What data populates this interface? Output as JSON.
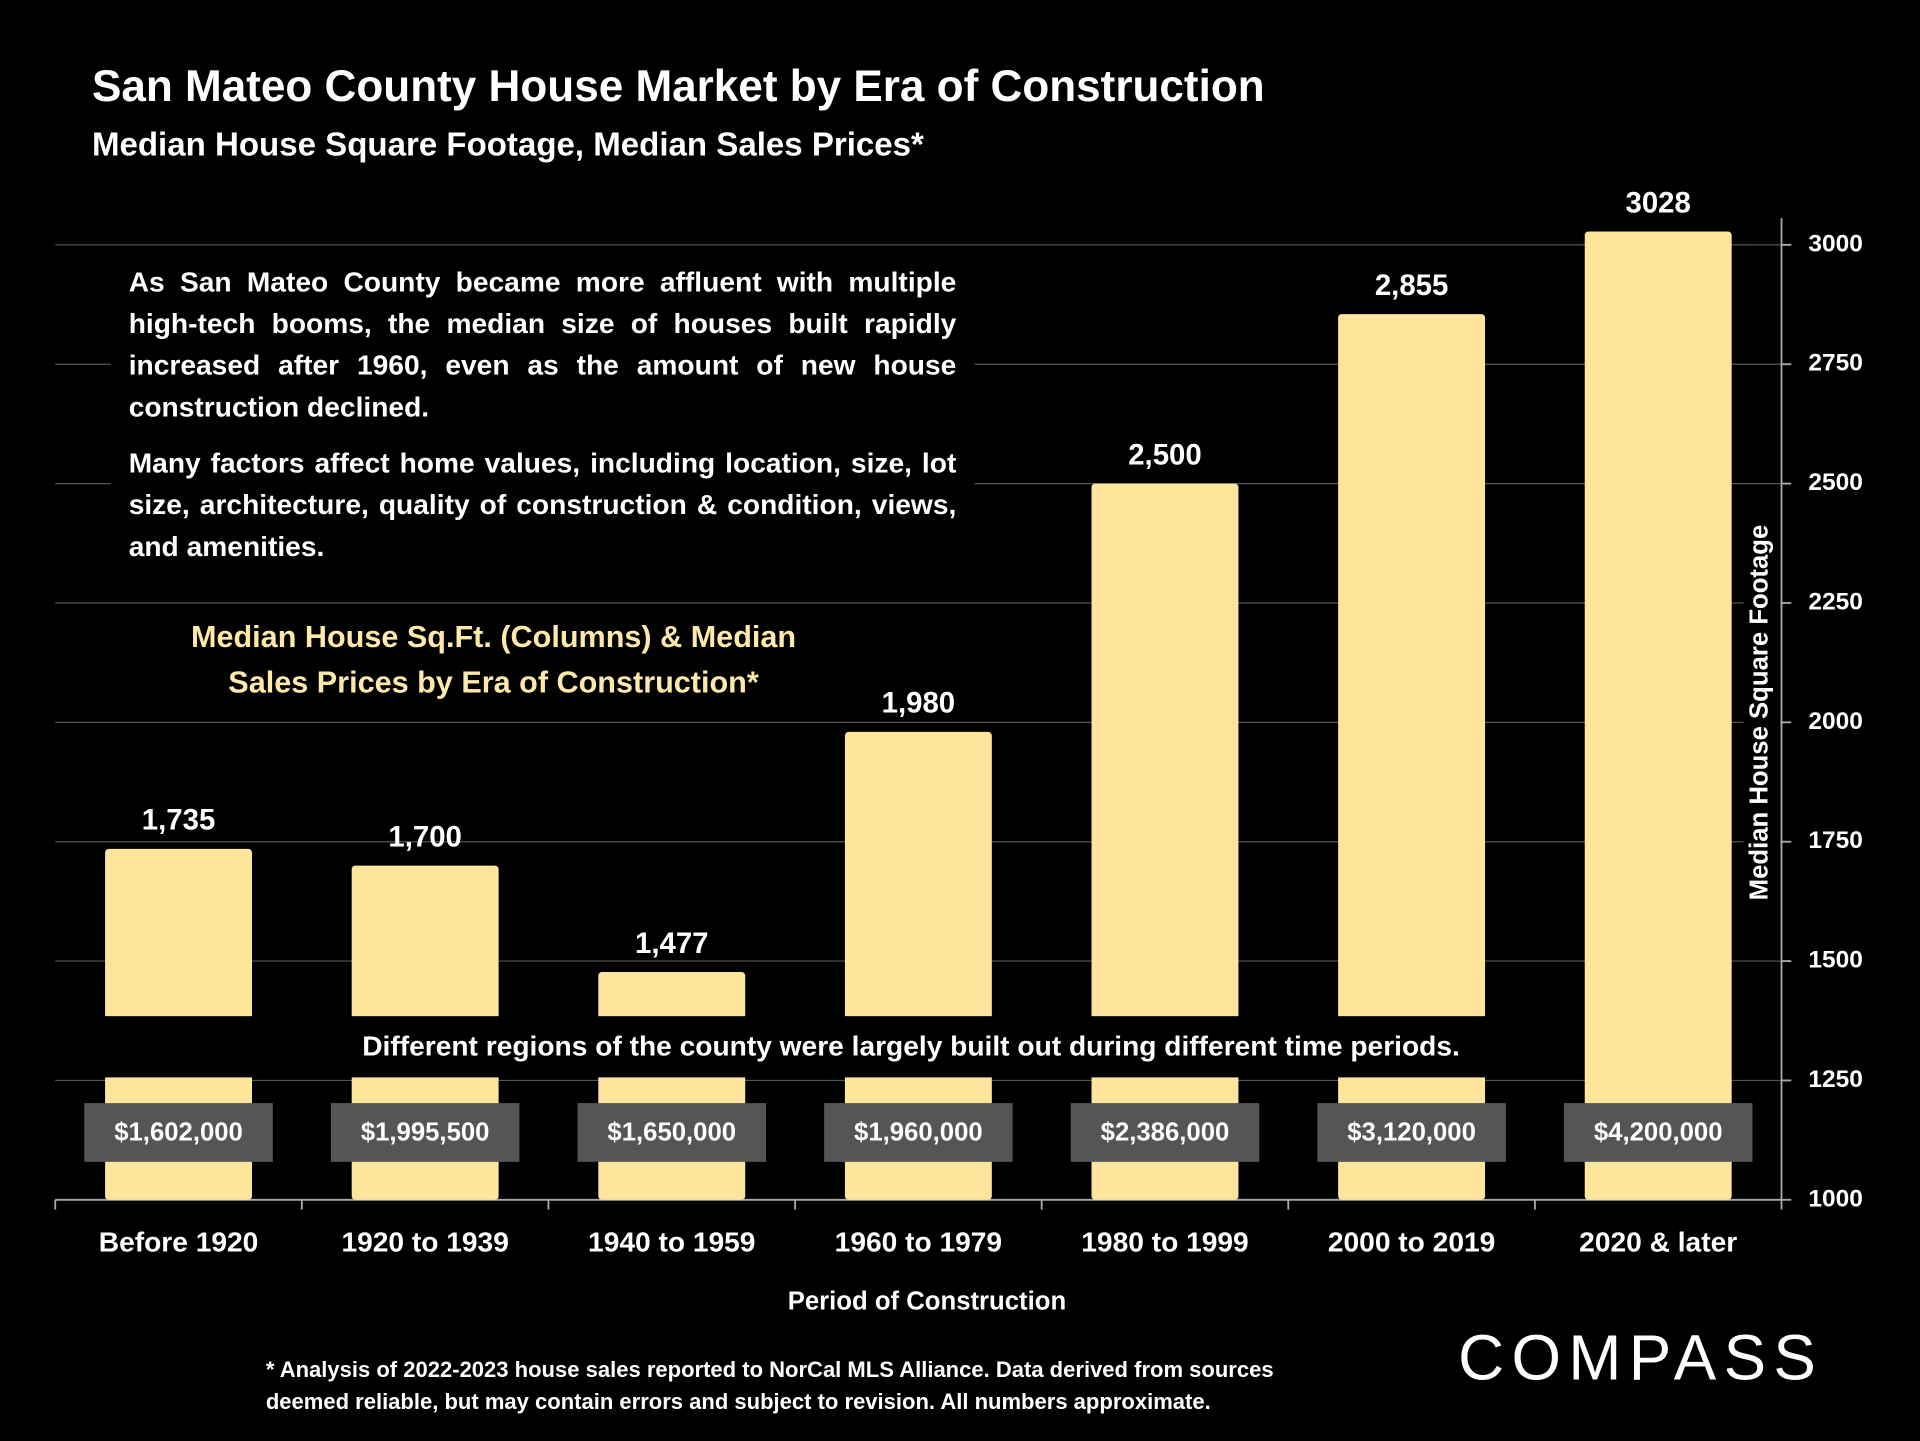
{
  "chart_data": {
    "type": "bar",
    "title": "San Mateo County House Market by Era of Construction",
    "subtitle": "Median House Square Footage, Median Sales Prices*",
    "categories": [
      "Before 1920",
      "1920 to 1939",
      "1940 to 1959",
      "1960 to 1979",
      "1980 to 1999",
      "2000 to 2019",
      "2020 & later"
    ],
    "series": [
      {
        "color": "#ffe49c",
        "values": [
          1735,
          1700,
          1477,
          1980,
          2500,
          2855,
          3028
        ],
        "value_labels": [
          "1,735",
          "1,700",
          "1,477",
          "1,980",
          "2,500",
          "2,855",
          "3028"
        ]
      },
      {
        "color": "#555555",
        "values": [
          1602000,
          1995500,
          1650000,
          1960000,
          2386000,
          3120000,
          4200000
        ],
        "value_labels": [
          "$1,602,000",
          "$1,995,500",
          "$1,650,000",
          "$1,960,000",
          "$2,386,000",
          "$3,120,000",
          "$4,200,000"
        ]
      }
    ],
    "ylim": [
      1000,
      3056
    ],
    "yticks": [
      1000,
      1250,
      1500,
      1750,
      2000,
      2250,
      2500,
      2750,
      3000
    ],
    "y_axis_label": "Median House Square Footage",
    "x_axis_label": "Period of Construction",
    "grid": true,
    "annotations": {
      "paragraphs": [
        "As San Mateo County became more affluent with multiple high-tech booms, the median size of houses built rapidly increased after 1960, even as the amount of new house construction declined.",
        "Many factors affect  home values, including location, size, lot size, architecture, quality of construction & condition, views, and amenities."
      ],
      "box_title": [
        "Median House Sq.Ft. (Columns) & Median",
        "Sales Prices by Era of Construction*"
      ],
      "note": "Different regions of the county were largely built out during different time periods.",
      "footnote": [
        "* Analysis of 2022-2023 house sales reported to NorCal MLS Alliance.  Data derived from sources",
        "deemed reliable, but may contain errors and subject to revision. All numbers approximate."
      ]
    },
    "logo": "COMPASS"
  }
}
